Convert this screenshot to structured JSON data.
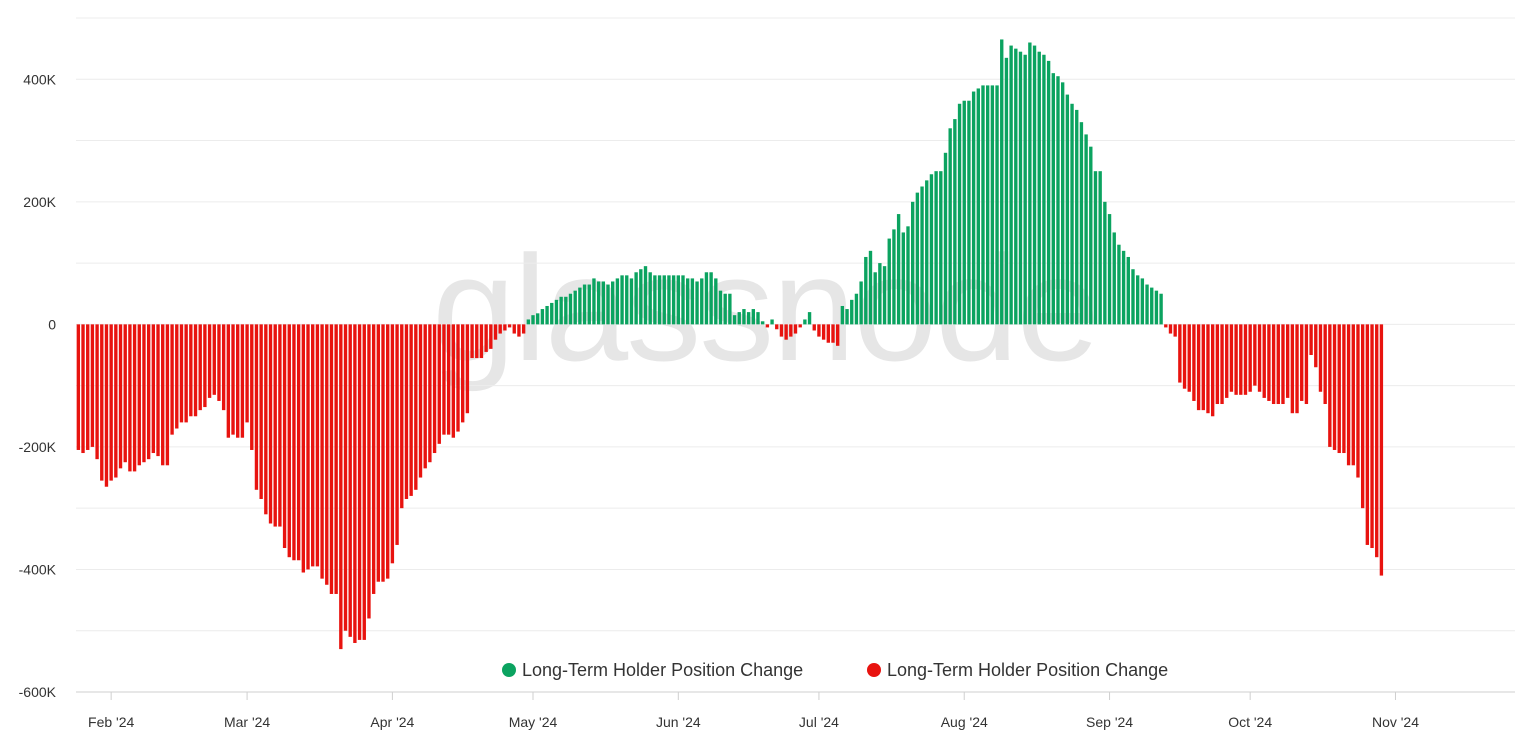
{
  "watermark": "glassnode",
  "colors": {
    "positive": "#0ba360",
    "negative": "#e8130f",
    "grid": "#ececec",
    "axis": "#cfcfcf",
    "watermark": "#d6d6d6"
  },
  "chart_data": {
    "type": "bar",
    "title": "",
    "xlabel": "",
    "ylabel": "",
    "ylim": [
      -600000,
      500000
    ],
    "grid": true,
    "legend_position": "bottom-center",
    "yticks": [
      {
        "value": 400000,
        "label": "400K"
      },
      {
        "value": 200000,
        "label": "200K"
      },
      {
        "value": 0,
        "label": "0"
      },
      {
        "value": -200000,
        "label": "-200K"
      },
      {
        "value": -400000,
        "label": "-400K"
      },
      {
        "value": -600000,
        "label": "-600K"
      }
    ],
    "xticks": [
      {
        "date": "2024-02-01",
        "label": "Feb '24"
      },
      {
        "date": "2024-03-01",
        "label": "Mar '24"
      },
      {
        "date": "2024-04-01",
        "label": "Apr '24"
      },
      {
        "date": "2024-05-01",
        "label": "May '24"
      },
      {
        "date": "2024-06-01",
        "label": "Jun '24"
      },
      {
        "date": "2024-07-01",
        "label": "Jul '24"
      },
      {
        "date": "2024-08-01",
        "label": "Aug '24"
      },
      {
        "date": "2024-09-01",
        "label": "Sep '24"
      },
      {
        "date": "2024-10-01",
        "label": "Oct '24"
      },
      {
        "date": "2024-11-01",
        "label": "Nov '24"
      }
    ],
    "series": [
      {
        "name": "Long-Term Holder Position Change",
        "color": "#0ba360",
        "sign": "positive"
      },
      {
        "name": "Long-Term Holder Position Change",
        "color": "#e8130f",
        "sign": "negative"
      }
    ],
    "x_start": "2024-01-25",
    "x_end": "2024-11-26",
    "x_step_days": 1,
    "values": [
      -205000,
      -210000,
      -205000,
      -200000,
      -220000,
      -255000,
      -265000,
      -255000,
      -250000,
      -235000,
      -225000,
      -240000,
      -240000,
      -230000,
      -225000,
      -220000,
      -210000,
      -215000,
      -230000,
      -230000,
      -180000,
      -170000,
      -160000,
      -160000,
      -150000,
      -150000,
      -140000,
      -135000,
      -120000,
      -115000,
      -125000,
      -140000,
      -185000,
      -180000,
      -185000,
      -185000,
      -160000,
      -205000,
      -270000,
      -285000,
      -310000,
      -325000,
      -330000,
      -330000,
      -365000,
      -380000,
      -385000,
      -385000,
      -405000,
      -400000,
      -395000,
      -395000,
      -415000,
      -425000,
      -440000,
      -440000,
      -530000,
      -500000,
      -510000,
      -520000,
      -515000,
      -515000,
      -480000,
      -440000,
      -420000,
      -420000,
      -415000,
      -390000,
      -360000,
      -300000,
      -285000,
      -280000,
      -270000,
      -250000,
      -235000,
      -225000,
      -210000,
      -195000,
      -180000,
      -180000,
      -185000,
      -175000,
      -160000,
      -145000,
      -55000,
      -55000,
      -55000,
      -45000,
      -40000,
      -25000,
      -15000,
      -10000,
      -5000,
      -15000,
      -20000,
      -15000,
      8000,
      15000,
      18000,
      25000,
      30000,
      35000,
      40000,
      45000,
      45000,
      50000,
      55000,
      60000,
      65000,
      65000,
      75000,
      70000,
      70000,
      65000,
      70000,
      75000,
      80000,
      80000,
      75000,
      85000,
      90000,
      95000,
      85000,
      80000,
      80000,
      80000,
      80000,
      80000,
      80000,
      80000,
      75000,
      75000,
      70000,
      75000,
      85000,
      85000,
      75000,
      55000,
      50000,
      50000,
      15000,
      20000,
      25000,
      20000,
      25000,
      20000,
      5000,
      -5000,
      8000,
      -8000,
      -20000,
      -25000,
      -20000,
      -15000,
      -5000,
      8000,
      20000,
      -10000,
      -20000,
      -25000,
      -30000,
      -30000,
      -35000,
      30000,
      25000,
      40000,
      50000,
      70000,
      110000,
      120000,
      85000,
      100000,
      95000,
      140000,
      155000,
      180000,
      150000,
      160000,
      200000,
      215000,
      225000,
      235000,
      245000,
      250000,
      250000,
      280000,
      320000,
      335000,
      360000,
      365000,
      365000,
      380000,
      385000,
      390000,
      390000,
      390000,
      390000,
      465000,
      435000,
      455000,
      450000,
      445000,
      440000,
      460000,
      455000,
      445000,
      440000,
      430000,
      410000,
      405000,
      395000,
      375000,
      360000,
      350000,
      330000,
      310000,
      290000,
      250000,
      250000,
      200000,
      180000,
      150000,
      130000,
      120000,
      110000,
      90000,
      80000,
      75000,
      65000,
      60000,
      55000,
      50000,
      -5000,
      -15000,
      -20000,
      -95000,
      -105000,
      -110000,
      -125000,
      -140000,
      -140000,
      -145000,
      -150000,
      -130000,
      -130000,
      -120000,
      -110000,
      -115000,
      -115000,
      -115000,
      -110000,
      -100000,
      -110000,
      -120000,
      -125000,
      -130000,
      -130000,
      -130000,
      -120000,
      -145000,
      -145000,
      -125000,
      -130000,
      -50000,
      -70000,
      -110000,
      -130000,
      -200000,
      -205000,
      -210000,
      -210000,
      -230000,
      -230000,
      -250000,
      -300000,
      -360000,
      -365000,
      -380000,
      -410000
    ]
  },
  "legend": [
    {
      "label": "Long-Term Holder Position Change",
      "color": "#0ba360"
    },
    {
      "label": "Long-Term Holder Position Change",
      "color": "#e8130f"
    }
  ]
}
